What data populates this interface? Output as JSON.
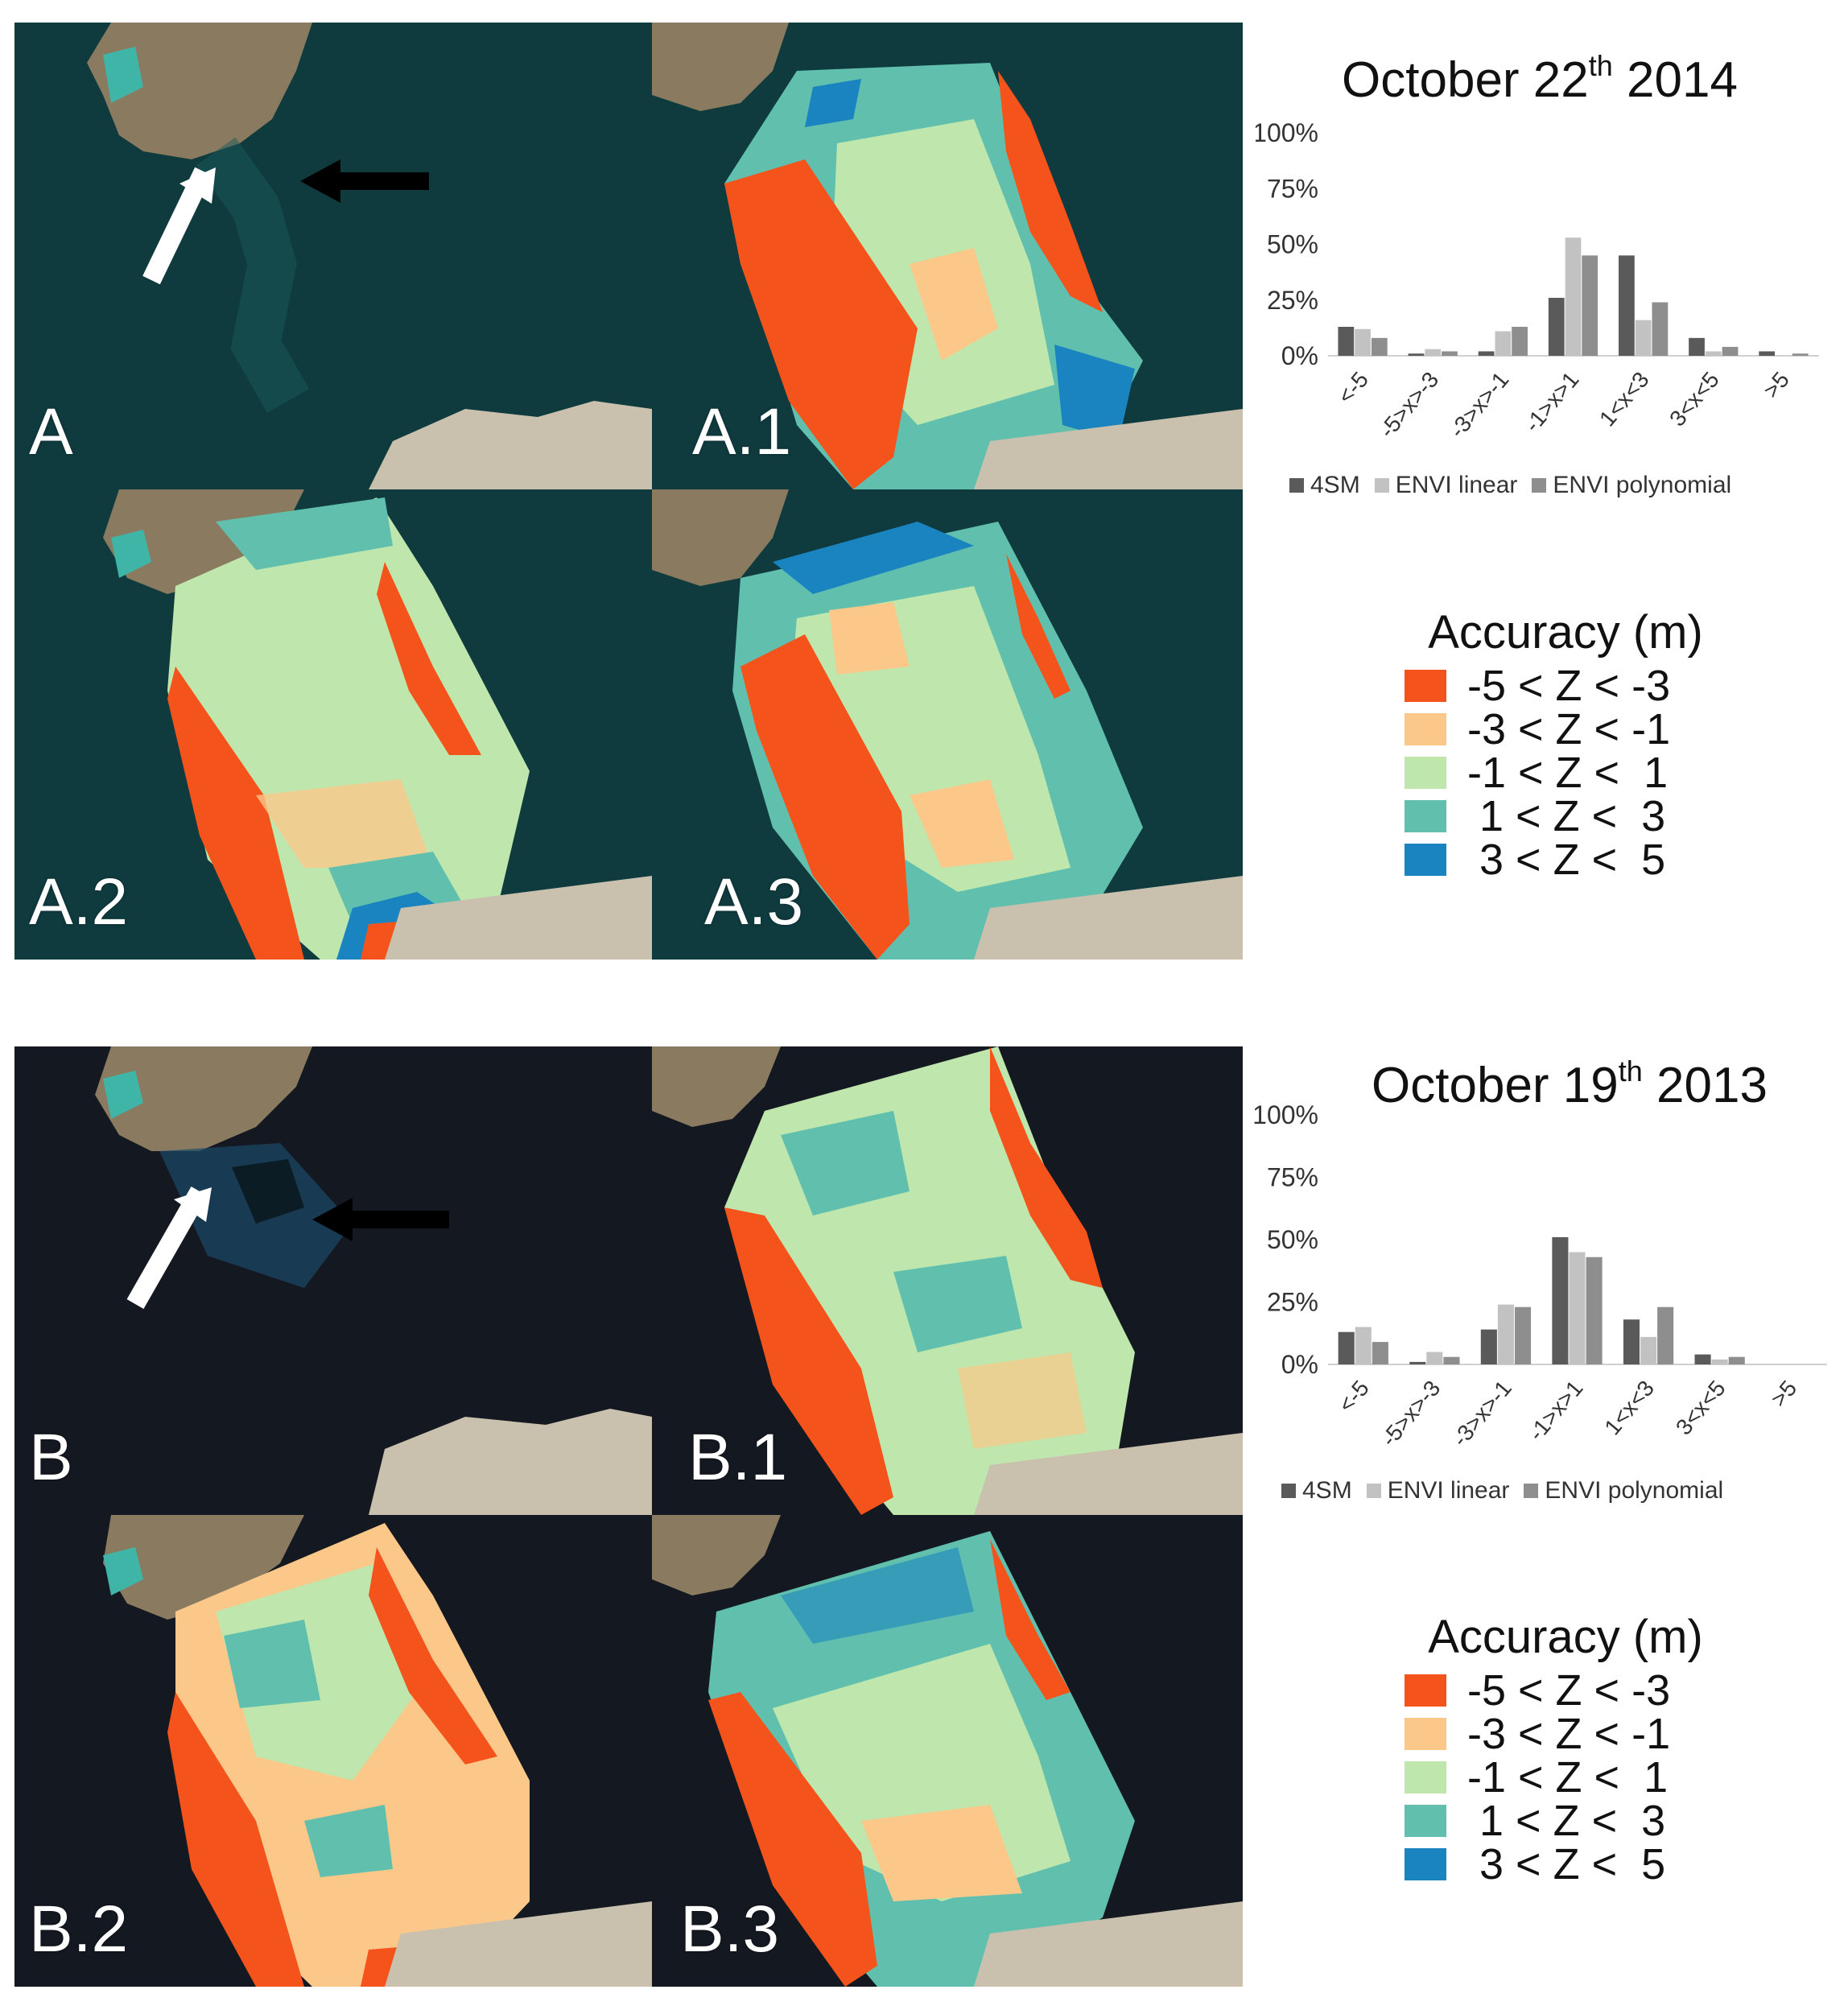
{
  "panels": {
    "A": "A",
    "A1": "A.1",
    "A2": "A.2",
    "A3": "A.3",
    "B": "B",
    "B1": "B.1",
    "B2": "B.2",
    "B3": "B.3"
  },
  "colors": {
    "class_neg5_neg3": "#f5531c",
    "class_neg3_neg1": "#fbc889",
    "class_neg1_1": "#bfe7ad",
    "class_1_3": "#61c0ad",
    "class_3_5": "#1984c0",
    "sea_2014": "#0f3b3f",
    "sea_2013": "#141820",
    "land": "#8a7b60",
    "series_4sm": "#5a5a5a",
    "series_envi_linear": "#c2c2c2",
    "series_envi_poly": "#8e8e8e"
  },
  "legend_top": {
    "title": "Accuracy (m)",
    "items": [
      "-5 < Z < -3",
      "-3 < Z < -1",
      "-1 < Z <  1",
      " 1 < Z <  3",
      " 3 < Z <  5"
    ]
  },
  "legend_bottom": {
    "title": "Accuracy (m)",
    "items": [
      "-5 < Z < -3",
      "-3 < Z < -1",
      "-1 < Z <  1",
      " 1 < Z <  3",
      " 3 < Z <  5"
    ]
  },
  "chart_data": [
    {
      "type": "bar",
      "title": "October 22th 2014",
      "title_main": "October 22",
      "title_sup": "th",
      "title_end": " 2014",
      "categories": [
        "<-5",
        "-5>x>-3",
        "-3>x>-1",
        "-1>x>1",
        "1<x<3",
        "3<x<5",
        ">5"
      ],
      "yticks": [
        "100%",
        "75%",
        "50%",
        "25%",
        "0%"
      ],
      "ylim": [
        0,
        100
      ],
      "series": [
        {
          "name": "4SM",
          "values": [
            13,
            1,
            2,
            26,
            45,
            8,
            2
          ]
        },
        {
          "name": "ENVI linear",
          "values": [
            12,
            3,
            11,
            53,
            16,
            2,
            0
          ]
        },
        {
          "name": "ENVI polynomial",
          "values": [
            8,
            2,
            13,
            45,
            24,
            4,
            1
          ]
        }
      ]
    },
    {
      "type": "bar",
      "title": "October 19th 2013",
      "title_main": "October 19",
      "title_sup": "th",
      "title_end": " 2013",
      "categories": [
        "<-5",
        "-5>x>-3",
        "-3>x>-1",
        "-1>x>1",
        "1<x<3",
        "3<x<5",
        ">5"
      ],
      "yticks": [
        "100%",
        "75%",
        "50%",
        "25%",
        "0%"
      ],
      "ylim": [
        0,
        100
      ],
      "series": [
        {
          "name": "4SM",
          "values": [
            13,
            1,
            14,
            51,
            18,
            4,
            0
          ]
        },
        {
          "name": "ENVI linear",
          "values": [
            15,
            5,
            24,
            45,
            11,
            2,
            0
          ]
        },
        {
          "name": "ENVI polynomial",
          "values": [
            9,
            3,
            23,
            43,
            23,
            3,
            0
          ]
        }
      ]
    }
  ]
}
